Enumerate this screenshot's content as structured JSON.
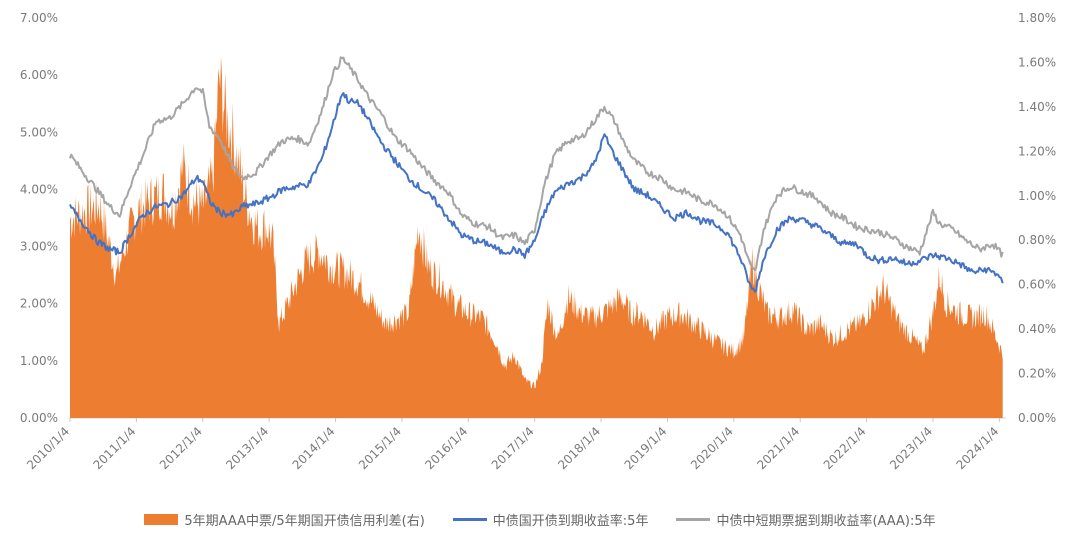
{
  "chart_data": {
    "type": "area",
    "left_axis": {
      "ticks": [
        "0.00%",
        "1.00%",
        "2.00%",
        "3.00%",
        "4.00%",
        "5.00%",
        "6.00%",
        "7.00%"
      ],
      "ylim": [
        0,
        7
      ]
    },
    "right_axis": {
      "ticks": [
        "0.00%",
        "0.20%",
        "0.40%",
        "0.60%",
        "0.80%",
        "1.00%",
        "1.20%",
        "1.40%",
        "1.60%",
        "1.80%"
      ],
      "ylim": [
        0,
        1.8
      ]
    },
    "x_labels": [
      "2010/1/4",
      "2011/1/4",
      "2012/1/4",
      "2013/1/4",
      "2014/1/4",
      "2015/1/4",
      "2016/1/4",
      "2017/1/4",
      "2018/1/4",
      "2019/1/4",
      "2020/1/4",
      "2021/1/4",
      "2022/1/4",
      "2023/1/4",
      "2024/1/4"
    ],
    "x_range": [
      2010.0,
      2024.1
    ],
    "series": [
      {
        "name": "5年期AAA中票/5年期国开债信用利差(右)",
        "type": "area",
        "axis": "right",
        "color": "#ed7d31",
        "points": [
          [
            2010.0,
            0.95
          ],
          [
            2010.15,
            0.98
          ],
          [
            2010.3,
            1.0
          ],
          [
            2010.45,
            1.02
          ],
          [
            2010.6,
            0.82
          ],
          [
            2010.7,
            0.68
          ],
          [
            2010.85,
            0.85
          ],
          [
            2011.0,
            0.98
          ],
          [
            2011.2,
            1.04
          ],
          [
            2011.4,
            1.08
          ],
          [
            2011.55,
            1.0
          ],
          [
            2011.7,
            1.2
          ],
          [
            2011.85,
            1.05
          ],
          [
            2012.0,
            1.0
          ],
          [
            2012.15,
            1.15
          ],
          [
            2012.25,
            1.62
          ],
          [
            2012.35,
            1.45
          ],
          [
            2012.45,
            1.35
          ],
          [
            2012.55,
            1.2
          ],
          [
            2012.65,
            1.05
          ],
          [
            2012.75,
            0.95
          ],
          [
            2012.85,
            0.9
          ],
          [
            2012.95,
            0.92
          ],
          [
            2013.05,
            0.85
          ],
          [
            2013.15,
            0.45
          ],
          [
            2013.35,
            0.6
          ],
          [
            2013.55,
            0.75
          ],
          [
            2013.75,
            0.8
          ],
          [
            2013.95,
            0.72
          ],
          [
            2014.15,
            0.7
          ],
          [
            2014.35,
            0.65
          ],
          [
            2014.55,
            0.55
          ],
          [
            2014.75,
            0.45
          ],
          [
            2014.95,
            0.48
          ],
          [
            2015.1,
            0.5
          ],
          [
            2015.25,
            0.92
          ],
          [
            2015.4,
            0.72
          ],
          [
            2015.6,
            0.65
          ],
          [
            2015.8,
            0.55
          ],
          [
            2016.0,
            0.5
          ],
          [
            2016.2,
            0.48
          ],
          [
            2016.4,
            0.38
          ],
          [
            2016.55,
            0.25
          ],
          [
            2016.7,
            0.3
          ],
          [
            2016.85,
            0.18
          ],
          [
            2017.0,
            0.15
          ],
          [
            2017.1,
            0.25
          ],
          [
            2017.2,
            0.55
          ],
          [
            2017.28,
            0.45
          ],
          [
            2017.35,
            0.38
          ],
          [
            2017.5,
            0.58
          ],
          [
            2017.7,
            0.5
          ],
          [
            2017.9,
            0.48
          ],
          [
            2018.1,
            0.52
          ],
          [
            2018.3,
            0.58
          ],
          [
            2018.45,
            0.5
          ],
          [
            2018.6,
            0.5
          ],
          [
            2018.8,
            0.42
          ],
          [
            2019.0,
            0.48
          ],
          [
            2019.2,
            0.5
          ],
          [
            2019.4,
            0.45
          ],
          [
            2019.6,
            0.4
          ],
          [
            2019.8,
            0.35
          ],
          [
            2020.0,
            0.32
          ],
          [
            2020.15,
            0.38
          ],
          [
            2020.28,
            0.75
          ],
          [
            2020.38,
            0.62
          ],
          [
            2020.5,
            0.5
          ],
          [
            2020.7,
            0.48
          ],
          [
            2020.9,
            0.52
          ],
          [
            2021.1,
            0.42
          ],
          [
            2021.3,
            0.45
          ],
          [
            2021.5,
            0.38
          ],
          [
            2021.7,
            0.42
          ],
          [
            2021.9,
            0.45
          ],
          [
            2022.1,
            0.55
          ],
          [
            2022.25,
            0.62
          ],
          [
            2022.35,
            0.55
          ],
          [
            2022.5,
            0.45
          ],
          [
            2022.7,
            0.38
          ],
          [
            2022.85,
            0.32
          ],
          [
            2023.0,
            0.5
          ],
          [
            2023.1,
            0.68
          ],
          [
            2023.2,
            0.55
          ],
          [
            2023.4,
            0.5
          ],
          [
            2023.6,
            0.48
          ],
          [
            2023.8,
            0.5
          ],
          [
            2024.0,
            0.35
          ],
          [
            2024.05,
            0.3
          ]
        ]
      },
      {
        "name": "中债国开债到期收益率:5年",
        "type": "line",
        "axis": "left",
        "color": "#4472c4",
        "points": [
          [
            2010.0,
            3.7
          ],
          [
            2010.2,
            3.4
          ],
          [
            2010.4,
            3.1
          ],
          [
            2010.6,
            2.95
          ],
          [
            2010.75,
            2.9
          ],
          [
            2010.9,
            3.2
          ],
          [
            2011.1,
            3.55
          ],
          [
            2011.3,
            3.7
          ],
          [
            2011.5,
            3.75
          ],
          [
            2011.7,
            3.9
          ],
          [
            2011.9,
            4.2
          ],
          [
            2012.0,
            4.15
          ],
          [
            2012.1,
            3.8
          ],
          [
            2012.25,
            3.6
          ],
          [
            2012.45,
            3.55
          ],
          [
            2012.6,
            3.7
          ],
          [
            2012.8,
            3.75
          ],
          [
            2013.0,
            3.85
          ],
          [
            2013.2,
            4.0
          ],
          [
            2013.4,
            4.05
          ],
          [
            2013.6,
            4.1
          ],
          [
            2013.8,
            4.55
          ],
          [
            2013.95,
            5.1
          ],
          [
            2014.1,
            5.7
          ],
          [
            2014.2,
            5.55
          ],
          [
            2014.35,
            5.5
          ],
          [
            2014.5,
            5.2
          ],
          [
            2014.7,
            4.8
          ],
          [
            2014.9,
            4.5
          ],
          [
            2015.1,
            4.2
          ],
          [
            2015.3,
            4.0
          ],
          [
            2015.5,
            3.8
          ],
          [
            2015.7,
            3.5
          ],
          [
            2015.9,
            3.2
          ],
          [
            2016.1,
            3.1
          ],
          [
            2016.3,
            3.05
          ],
          [
            2016.5,
            2.9
          ],
          [
            2016.7,
            2.95
          ],
          [
            2016.85,
            2.85
          ],
          [
            2017.0,
            3.1
          ],
          [
            2017.15,
            3.6
          ],
          [
            2017.3,
            3.95
          ],
          [
            2017.5,
            4.1
          ],
          [
            2017.7,
            4.2
          ],
          [
            2017.9,
            4.45
          ],
          [
            2018.05,
            4.95
          ],
          [
            2018.2,
            4.6
          ],
          [
            2018.35,
            4.3
          ],
          [
            2018.5,
            4.0
          ],
          [
            2018.7,
            3.9
          ],
          [
            2018.9,
            3.7
          ],
          [
            2019.1,
            3.5
          ],
          [
            2019.3,
            3.6
          ],
          [
            2019.5,
            3.45
          ],
          [
            2019.7,
            3.4
          ],
          [
            2019.9,
            3.25
          ],
          [
            2020.1,
            2.8
          ],
          [
            2020.25,
            2.3
          ],
          [
            2020.32,
            2.2
          ],
          [
            2020.45,
            2.8
          ],
          [
            2020.65,
            3.3
          ],
          [
            2020.85,
            3.5
          ],
          [
            2021.05,
            3.45
          ],
          [
            2021.25,
            3.35
          ],
          [
            2021.45,
            3.2
          ],
          [
            2021.65,
            3.05
          ],
          [
            2021.85,
            3.05
          ],
          [
            2022.0,
            2.85
          ],
          [
            2022.2,
            2.75
          ],
          [
            2022.4,
            2.8
          ],
          [
            2022.6,
            2.7
          ],
          [
            2022.8,
            2.75
          ],
          [
            2023.0,
            2.85
          ],
          [
            2023.2,
            2.8
          ],
          [
            2023.4,
            2.7
          ],
          [
            2023.6,
            2.55
          ],
          [
            2023.8,
            2.6
          ],
          [
            2024.0,
            2.5
          ],
          [
            2024.05,
            2.35
          ]
        ]
      },
      {
        "name": "中债中短期票据到期收益率(AAA):5年",
        "type": "line",
        "axis": "left",
        "color": "#a5a5a5",
        "points": [
          [
            2010.0,
            4.6
          ],
          [
            2010.2,
            4.3
          ],
          [
            2010.4,
            4.0
          ],
          [
            2010.6,
            3.7
          ],
          [
            2010.75,
            3.55
          ],
          [
            2010.9,
            4.05
          ],
          [
            2011.1,
            4.6
          ],
          [
            2011.3,
            5.2
          ],
          [
            2011.5,
            5.25
          ],
          [
            2011.7,
            5.5
          ],
          [
            2011.9,
            5.8
          ],
          [
            2012.0,
            5.7
          ],
          [
            2012.1,
            5.1
          ],
          [
            2012.25,
            4.9
          ],
          [
            2012.45,
            4.4
          ],
          [
            2012.6,
            4.2
          ],
          [
            2012.8,
            4.3
          ],
          [
            2013.0,
            4.6
          ],
          [
            2013.2,
            4.85
          ],
          [
            2013.4,
            4.9
          ],
          [
            2013.6,
            4.8
          ],
          [
            2013.8,
            5.4
          ],
          [
            2013.95,
            6.0
          ],
          [
            2014.1,
            6.3
          ],
          [
            2014.2,
            6.15
          ],
          [
            2014.35,
            5.9
          ],
          [
            2014.5,
            5.6
          ],
          [
            2014.7,
            5.3
          ],
          [
            2014.9,
            4.9
          ],
          [
            2015.1,
            4.7
          ],
          [
            2015.3,
            4.4
          ],
          [
            2015.5,
            4.15
          ],
          [
            2015.7,
            3.95
          ],
          [
            2015.9,
            3.55
          ],
          [
            2016.1,
            3.4
          ],
          [
            2016.3,
            3.35
          ],
          [
            2016.5,
            3.15
          ],
          [
            2016.7,
            3.2
          ],
          [
            2016.85,
            3.05
          ],
          [
            2017.0,
            3.3
          ],
          [
            2017.15,
            4.1
          ],
          [
            2017.3,
            4.6
          ],
          [
            2017.5,
            4.85
          ],
          [
            2017.7,
            4.9
          ],
          [
            2017.9,
            5.2
          ],
          [
            2018.05,
            5.45
          ],
          [
            2018.2,
            5.2
          ],
          [
            2018.35,
            4.8
          ],
          [
            2018.5,
            4.5
          ],
          [
            2018.7,
            4.3
          ],
          [
            2018.9,
            4.2
          ],
          [
            2019.1,
            4.0
          ],
          [
            2019.3,
            3.95
          ],
          [
            2019.5,
            3.8
          ],
          [
            2019.7,
            3.75
          ],
          [
            2019.9,
            3.55
          ],
          [
            2020.1,
            3.2
          ],
          [
            2020.25,
            2.65
          ],
          [
            2020.32,
            2.55
          ],
          [
            2020.45,
            3.3
          ],
          [
            2020.65,
            3.9
          ],
          [
            2020.85,
            4.05
          ],
          [
            2021.05,
            3.95
          ],
          [
            2021.25,
            3.85
          ],
          [
            2021.45,
            3.6
          ],
          [
            2021.65,
            3.5
          ],
          [
            2021.85,
            3.35
          ],
          [
            2022.0,
            3.3
          ],
          [
            2022.2,
            3.25
          ],
          [
            2022.4,
            3.15
          ],
          [
            2022.6,
            3.0
          ],
          [
            2022.8,
            2.9
          ],
          [
            2023.0,
            3.6
          ],
          [
            2023.1,
            3.4
          ],
          [
            2023.3,
            3.3
          ],
          [
            2023.5,
            3.1
          ],
          [
            2023.7,
            2.95
          ],
          [
            2023.9,
            3.05
          ],
          [
            2024.05,
            2.85
          ]
        ]
      }
    ]
  }
}
